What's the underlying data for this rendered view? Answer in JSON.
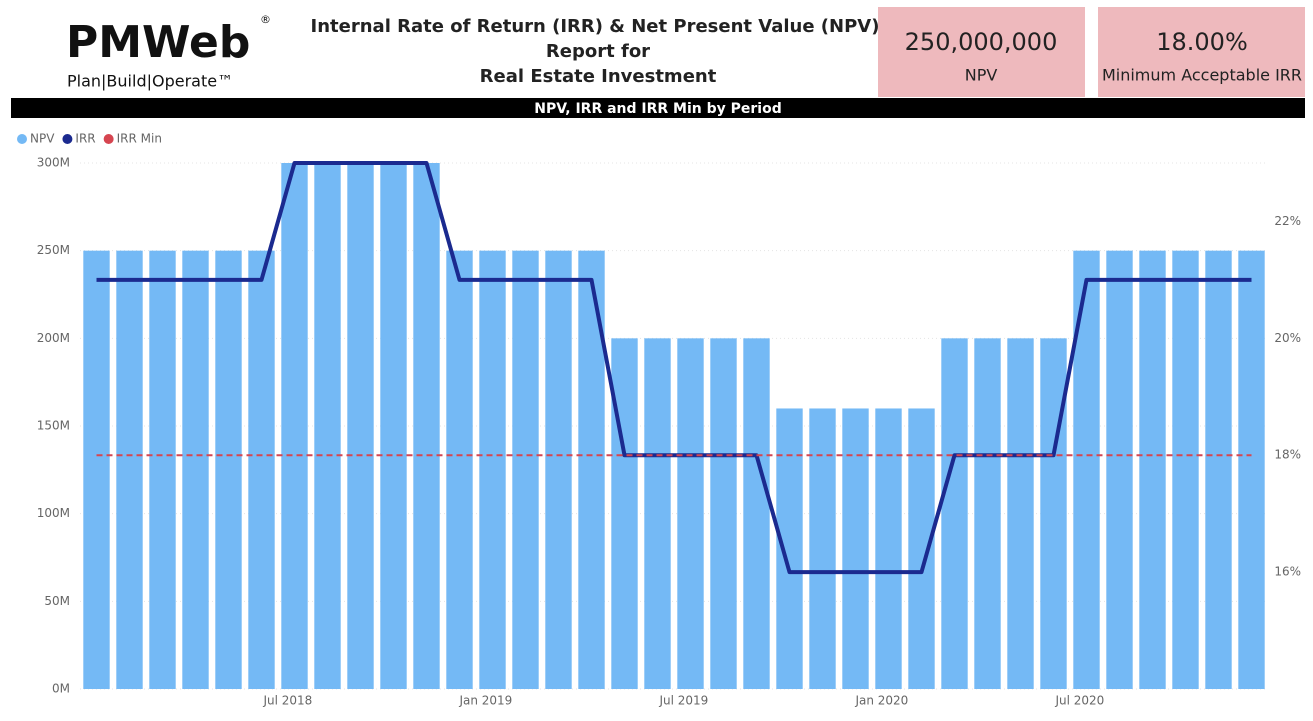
{
  "logo": {
    "name": "PMWeb",
    "registered": "®",
    "tagline": "Plan|Build|Operate™"
  },
  "header": {
    "title_lines": [
      "Internal Rate of Return (IRR) & Net Present Value (NPV)",
      "Report for",
      "Real Estate Investment"
    ]
  },
  "kpis": [
    {
      "value": "250,000,000",
      "label": "NPV"
    },
    {
      "value": "18.00%",
      "label": "Minimum Acceptable IRR"
    }
  ],
  "chart_data": {
    "type": "combo",
    "title": "NPV, IRR and IRR Min by Period",
    "categories": [
      null,
      null,
      null,
      null,
      null,
      null,
      "Jul 2018",
      null,
      null,
      null,
      null,
      null,
      "Jan 2019",
      null,
      null,
      null,
      null,
      null,
      "Jul 2019",
      null,
      null,
      null,
      null,
      null,
      "Jan 2020",
      null,
      null,
      null,
      null,
      null,
      "Jul 2020",
      null,
      null,
      null,
      null,
      null
    ],
    "series": [
      {
        "name": "NPV",
        "kind": "bar",
        "color": "#74b9f5",
        "values": [
          250000000,
          250000000,
          250000000,
          250000000,
          250000000,
          250000000,
          300000000,
          300000000,
          300000000,
          300000000,
          300000000,
          250000000,
          250000000,
          250000000,
          250000000,
          250000000,
          200000000,
          200000000,
          200000000,
          200000000,
          200000000,
          160000000,
          160000000,
          160000000,
          160000000,
          160000000,
          200000000,
          200000000,
          200000000,
          200000000,
          250000000,
          250000000,
          250000000,
          250000000,
          250000000,
          250000000
        ]
      },
      {
        "name": "IRR",
        "kind": "line",
        "axis": "y2",
        "color": "#1b2a8f",
        "values": [
          21,
          21,
          21,
          21,
          21,
          21,
          23,
          23,
          23,
          23,
          23,
          21,
          21,
          21,
          21,
          21,
          18,
          18,
          18,
          18,
          18,
          16,
          16,
          16,
          16,
          16,
          18,
          18,
          18,
          18,
          21,
          21,
          21,
          21,
          21,
          21
        ]
      },
      {
        "name": "IRR Min",
        "kind": "line",
        "axis": "y2",
        "color": "#d64550",
        "dashed": true,
        "values": [
          18,
          18,
          18,
          18,
          18,
          18,
          18,
          18,
          18,
          18,
          18,
          18,
          18,
          18,
          18,
          18,
          18,
          18,
          18,
          18,
          18,
          18,
          18,
          18,
          18,
          18,
          18,
          18,
          18,
          18,
          18,
          18,
          18,
          18,
          18,
          18
        ]
      }
    ],
    "ylim": [
      0,
      300000000
    ],
    "yticks": [
      {
        "value": 0,
        "label": "0M"
      },
      {
        "value": 50000000,
        "label": "50M"
      },
      {
        "value": 100000000,
        "label": "100M"
      },
      {
        "value": 150000000,
        "label": "150M"
      },
      {
        "value": 200000000,
        "label": "200M"
      },
      {
        "value": 250000000,
        "label": "250M"
      },
      {
        "value": 300000000,
        "label": "300M"
      }
    ],
    "y2lim": [
      14,
      23
    ],
    "y2ticks": [
      {
        "value": 16,
        "label": "16%"
      },
      {
        "value": 18,
        "label": "18%"
      },
      {
        "value": 20,
        "label": "20%"
      },
      {
        "value": 22,
        "label": "22%"
      }
    ],
    "grid": true,
    "legend": "top-left"
  }
}
